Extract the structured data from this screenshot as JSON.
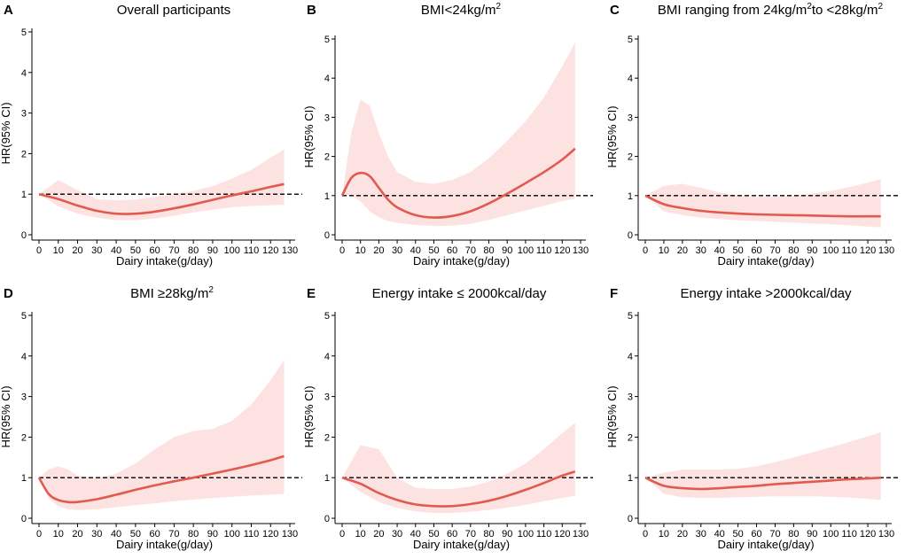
{
  "colors": {
    "curve": "#e05a4f",
    "band": "#fde2e2",
    "axis": "#000000",
    "reference_line": "#000000"
  },
  "chart_data": [
    {
      "type": "line",
      "panel": "A",
      "title": "Overall participants",
      "xlabel": "Dairy intake(g/day)",
      "ylabel": "HR(95% CI)",
      "xlim": [
        0,
        130
      ],
      "ylim": [
        0,
        5
      ],
      "x_ticks": [
        0,
        10,
        20,
        30,
        40,
        50,
        60,
        70,
        80,
        90,
        100,
        110,
        120,
        130
      ],
      "y_ticks": [
        0,
        1,
        2,
        3,
        4,
        5
      ],
      "reference_line": 1,
      "series": [
        {
          "name": "HR",
          "x": [
            0,
            10,
            20,
            30,
            40,
            50,
            60,
            70,
            80,
            90,
            100,
            110,
            120,
            127
          ],
          "values": [
            1.0,
            0.88,
            0.72,
            0.59,
            0.52,
            0.52,
            0.57,
            0.65,
            0.75,
            0.86,
            0.97,
            1.07,
            1.18,
            1.25
          ],
          "lower": [
            1.0,
            0.7,
            0.52,
            0.42,
            0.36,
            0.36,
            0.4,
            0.47,
            0.55,
            0.62,
            0.68,
            0.71,
            0.73,
            0.74
          ],
          "upper": [
            1.0,
            1.35,
            1.1,
            0.88,
            0.85,
            0.87,
            0.93,
            1.0,
            1.08,
            1.2,
            1.38,
            1.6,
            1.9,
            2.1
          ]
        }
      ]
    },
    {
      "type": "line",
      "panel": "B",
      "title": "BMI<24kg/m",
      "title_sup": "2",
      "xlabel": "Dairy intake(g/day)",
      "ylabel": "HR(95% CI)",
      "xlim": [
        0,
        130
      ],
      "ylim": [
        0,
        5
      ],
      "x_ticks": [
        0,
        10,
        20,
        30,
        40,
        50,
        60,
        70,
        80,
        90,
        100,
        110,
        120,
        130
      ],
      "y_ticks": [
        0,
        1,
        2,
        3,
        4,
        5
      ],
      "reference_line": 1,
      "series": [
        {
          "name": "HR",
          "x": [
            0,
            5,
            10,
            15,
            20,
            25,
            30,
            40,
            50,
            60,
            70,
            80,
            90,
            100,
            110,
            120,
            127
          ],
          "values": [
            1.0,
            1.45,
            1.58,
            1.5,
            1.2,
            0.9,
            0.7,
            0.5,
            0.44,
            0.48,
            0.6,
            0.8,
            1.05,
            1.32,
            1.6,
            1.92,
            2.2
          ],
          "lower": [
            1.0,
            1.0,
            0.85,
            0.6,
            0.45,
            0.35,
            0.3,
            0.25,
            0.22,
            0.23,
            0.28,
            0.38,
            0.5,
            0.62,
            0.74,
            0.86,
            0.92
          ],
          "upper": [
            1.0,
            2.6,
            3.45,
            3.3,
            2.6,
            2.0,
            1.6,
            1.35,
            1.3,
            1.4,
            1.6,
            1.95,
            2.4,
            2.9,
            3.5,
            4.3,
            4.9
          ]
        }
      ]
    },
    {
      "type": "line",
      "panel": "C",
      "title_parts": [
        "BMI ranging from 24kg/m",
        "2",
        "to <28kg/m",
        "2"
      ],
      "xlabel": "Dairy intake(g/day)",
      "ylabel": "HR(95% CI)",
      "xlim": [
        0,
        130
      ],
      "ylim": [
        0,
        5
      ],
      "x_ticks": [
        0,
        10,
        20,
        30,
        40,
        50,
        60,
        70,
        80,
        90,
        100,
        110,
        120,
        130
      ],
      "y_ticks": [
        0,
        1,
        2,
        3,
        4,
        5
      ],
      "reference_line": 1,
      "series": [
        {
          "name": "HR",
          "x": [
            0,
            10,
            20,
            30,
            40,
            50,
            60,
            70,
            80,
            90,
            100,
            110,
            120,
            127
          ],
          "values": [
            1.0,
            0.78,
            0.68,
            0.61,
            0.57,
            0.54,
            0.52,
            0.51,
            0.5,
            0.49,
            0.48,
            0.47,
            0.47,
            0.47
          ],
          "lower": [
            1.0,
            0.6,
            0.5,
            0.44,
            0.4,
            0.37,
            0.35,
            0.33,
            0.31,
            0.29,
            0.27,
            0.24,
            0.21,
            0.19
          ],
          "upper": [
            1.0,
            1.25,
            1.3,
            1.2,
            1.08,
            1.0,
            0.97,
            0.97,
            1.0,
            1.05,
            1.12,
            1.22,
            1.33,
            1.42
          ]
        }
      ]
    },
    {
      "type": "line",
      "panel": "D",
      "title": "BMI ≥28kg/m",
      "title_sup": "2",
      "xlabel": "Dairy intake(g/day)",
      "ylabel": "HR(95% CI)",
      "xlim": [
        0,
        130
      ],
      "ylim": [
        0,
        5
      ],
      "x_ticks": [
        0,
        10,
        20,
        30,
        40,
        50,
        60,
        70,
        80,
        90,
        100,
        110,
        120,
        130
      ],
      "y_ticks": [
        0,
        1,
        2,
        3,
        4,
        5
      ],
      "reference_line": 1,
      "series": [
        {
          "name": "HR",
          "x": [
            0,
            5,
            10,
            15,
            20,
            30,
            40,
            50,
            60,
            70,
            80,
            90,
            100,
            110,
            120,
            127
          ],
          "values": [
            1.0,
            0.6,
            0.45,
            0.4,
            0.4,
            0.47,
            0.58,
            0.7,
            0.81,
            0.91,
            1.0,
            1.1,
            1.2,
            1.31,
            1.43,
            1.53
          ],
          "lower": [
            1.0,
            0.5,
            0.3,
            0.22,
            0.2,
            0.22,
            0.27,
            0.32,
            0.37,
            0.42,
            0.46,
            0.5,
            0.53,
            0.56,
            0.58,
            0.6
          ],
          "upper": [
            1.0,
            1.2,
            1.28,
            1.2,
            1.05,
            0.98,
            1.1,
            1.35,
            1.7,
            2.0,
            2.15,
            2.2,
            2.4,
            2.8,
            3.4,
            3.9
          ]
        }
      ]
    },
    {
      "type": "line",
      "panel": "E",
      "title": "Energy intake ≤ 2000kcal/day",
      "xlabel": "Dairy intake(g/day)",
      "ylabel": "HR(95% CI)",
      "xlim": [
        0,
        130
      ],
      "ylim": [
        0,
        5
      ],
      "x_ticks": [
        0,
        10,
        20,
        30,
        40,
        50,
        60,
        70,
        80,
        90,
        100,
        110,
        120,
        130
      ],
      "y_ticks": [
        0,
        1,
        2,
        3,
        4,
        5
      ],
      "reference_line": 1,
      "series": [
        {
          "name": "HR",
          "x": [
            0,
            10,
            20,
            30,
            40,
            50,
            60,
            70,
            80,
            90,
            100,
            110,
            120,
            127
          ],
          "values": [
            1.0,
            0.85,
            0.62,
            0.45,
            0.34,
            0.3,
            0.3,
            0.35,
            0.43,
            0.55,
            0.7,
            0.87,
            1.05,
            1.15
          ],
          "lower": [
            1.0,
            0.65,
            0.4,
            0.25,
            0.17,
            0.13,
            0.13,
            0.16,
            0.2,
            0.26,
            0.33,
            0.42,
            0.5,
            0.55
          ],
          "upper": [
            1.0,
            1.8,
            1.7,
            1.0,
            0.75,
            0.72,
            0.72,
            0.78,
            0.9,
            1.1,
            1.35,
            1.7,
            2.1,
            2.35
          ]
        }
      ]
    },
    {
      "type": "line",
      "panel": "F",
      "title": "Energy intake >2000kcal/day",
      "xlabel": "Dairy intake(g/day)",
      "ylabel": "HR(95% CI)",
      "xlim": [
        0,
        130
      ],
      "ylim": [
        0,
        5
      ],
      "x_ticks": [
        0,
        10,
        20,
        30,
        40,
        50,
        60,
        70,
        80,
        90,
        100,
        110,
        120,
        130
      ],
      "y_ticks": [
        0,
        1,
        2,
        3,
        4,
        5
      ],
      "reference_line": 1,
      "series": [
        {
          "name": "HR",
          "x": [
            0,
            10,
            20,
            30,
            40,
            50,
            60,
            70,
            80,
            90,
            100,
            110,
            120,
            127
          ],
          "values": [
            1.0,
            0.8,
            0.74,
            0.72,
            0.74,
            0.77,
            0.8,
            0.84,
            0.87,
            0.9,
            0.93,
            0.96,
            0.98,
            1.0
          ],
          "lower": [
            1.0,
            0.6,
            0.52,
            0.5,
            0.5,
            0.52,
            0.53,
            0.54,
            0.54,
            0.54,
            0.53,
            0.51,
            0.48,
            0.45
          ],
          "upper": [
            1.0,
            1.12,
            1.2,
            1.2,
            1.2,
            1.22,
            1.28,
            1.38,
            1.5,
            1.62,
            1.75,
            1.88,
            2.02,
            2.12
          ]
        }
      ]
    }
  ]
}
